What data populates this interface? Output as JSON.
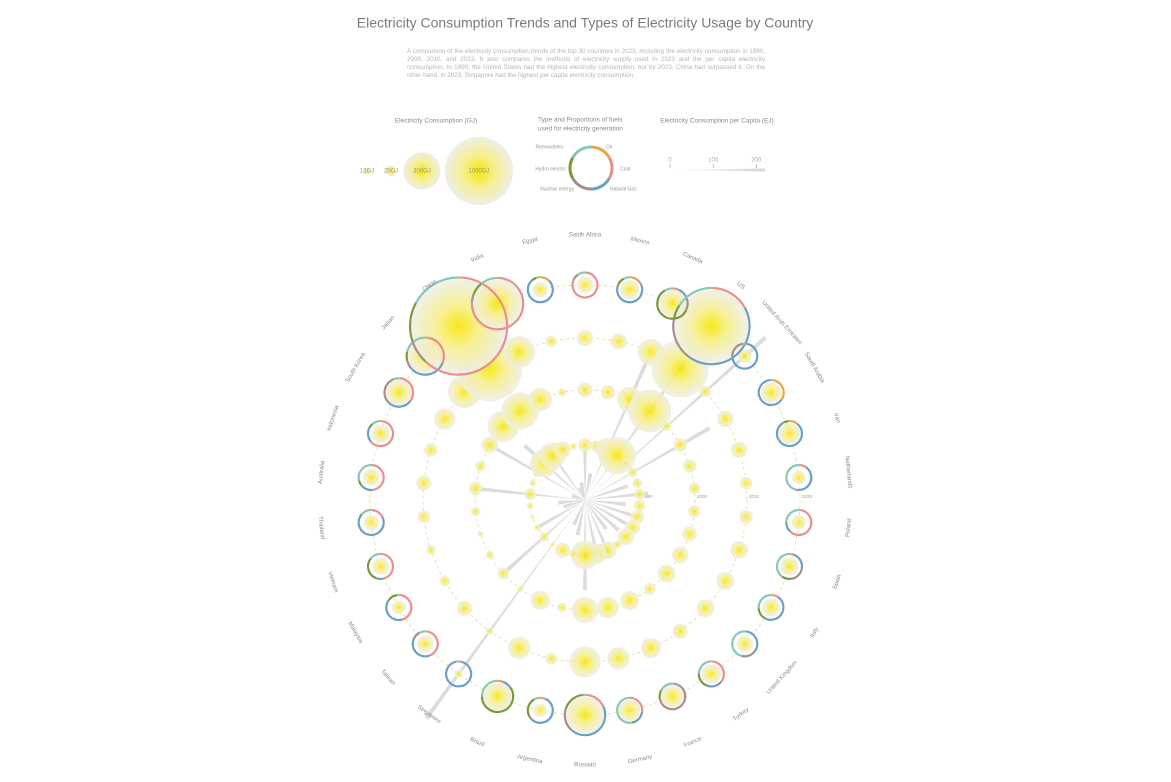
{
  "chart_data": {
    "type": "radial",
    "title": "Electricity Consumption Trends and Types of Electricity Usage by Country",
    "subtitle": "A comparison of the electricity consumption trends of the top 30 countries in 2023, including the electricity consumption in 1990, 2000, 2010, and 2023. It also compares the methods of electricity supply used in 2023 and the per capita electricity consumption. In 1990, the United States had the highest electricity consumption, but by 2023, China had surpassed it. On the other hand, in 2023, Singapore had the highest per capita electricity consumption.",
    "countries": [
      "South Africa",
      "Mexico",
      "Canada",
      "US",
      "United Arab Emirates",
      "Saudi Arabia",
      "Iran",
      "Netherlands",
      "Poland",
      "Spain",
      "Italy",
      "United Kingdom",
      "Turkey",
      "France",
      "Germany",
      "Russian",
      "Argentina",
      "Brazil",
      "Singapore",
      "Taiwan",
      "Malaysia",
      "Vietnam",
      "Thailand",
      "Australia",
      "Indonesia",
      "South Korea",
      "Japan",
      "China",
      "India",
      "Egypt"
    ],
    "consumption": {
      "title": "Electricity Consumption (GJ)",
      "legend_values": [
        12,
        25,
        300,
        1000
      ],
      "legend_value_labels": [
        "12GJ",
        "25GJ",
        "300GJ",
        "1000GJ"
      ],
      "series": [
        {
          "name": "1990",
          "values": [
            40,
            30,
            120,
            300,
            10,
            20,
            20,
            25,
            30,
            40,
            50,
            60,
            15,
            70,
            90,
            180,
            15,
            50,
            5,
            20,
            8,
            3,
            10,
            30,
            10,
            20,
            170,
            150,
            60,
            10
          ]
        },
        {
          "name": "2000",
          "values": [
            50,
            45,
            140,
            400,
            20,
            40,
            40,
            30,
            35,
            50,
            60,
            70,
            30,
            80,
            100,
            150,
            20,
            80,
            8,
            30,
            15,
            6,
            20,
            40,
            25,
            60,
            210,
            300,
            120,
            15
          ]
        },
        {
          "name": "2010",
          "values": [
            60,
            60,
            150,
            700,
            30,
            60,
            60,
            35,
            40,
            70,
            70,
            70,
            50,
            90,
            110,
            210,
            30,
            110,
            12,
            50,
            25,
            20,
            35,
            50,
            40,
            100,
            240,
            900,
            220,
            30
          ]
        },
        {
          "name": "2023",
          "values": [
            60,
            80,
            160,
            1150,
            40,
            90,
            100,
            40,
            45,
            70,
            70,
            60,
            80,
            110,
            100,
            300,
            40,
            170,
            15,
            60,
            40,
            60,
            50,
            60,
            70,
            140,
            250,
            1900,
            500,
            50
          ]
        }
      ]
    },
    "fuel_mix": {
      "title_lines": [
        "Type and Proportions of fuels",
        "used for electricity generation"
      ],
      "series": [
        {
          "name": "Oil",
          "color": "#e8a648",
          "values": [
            2,
            10,
            1,
            1,
            2,
            35,
            10,
            2,
            2,
            3,
            4,
            1,
            1,
            1,
            1,
            1,
            5,
            3,
            2,
            2,
            1,
            1,
            1,
            2,
            3,
            1,
            3,
            1,
            1,
            12
          ]
        },
        {
          "name": "Coal",
          "color": "#ea8f8c",
          "values": [
            80,
            8,
            5,
            16,
            0,
            0,
            1,
            8,
            60,
            2,
            5,
            1,
            35,
            1,
            26,
            17,
            2,
            3,
            1,
            42,
            45,
            45,
            17,
            46,
            61,
            34,
            28,
            61,
            75,
            0
          ]
        },
        {
          "name": "Natural Gas",
          "color": "#6a9fc6",
          "values": [
            2,
            60,
            12,
            43,
            75,
            64,
            80,
            40,
            12,
            25,
            50,
            35,
            20,
            5,
            15,
            43,
            55,
            7,
            94,
            40,
            40,
            10,
            65,
            17,
            18,
            28,
            32,
            3,
            2,
            76
          ]
        },
        {
          "name": "Nuclear energy",
          "color": "#a88c88",
          "values": [
            5,
            4,
            14,
            18,
            20,
            0,
            2,
            3,
            0,
            20,
            0,
            14,
            0,
            65,
            1,
            19,
            5,
            2,
            0,
            6,
            0,
            0,
            0,
            0,
            0,
            30,
            8,
            5,
            3,
            0
          ]
        },
        {
          "name": "Hydro electric",
          "color": "#7a9a38",
          "values": [
            1,
            10,
            60,
            6,
            0,
            0,
            6,
            0,
            1,
            10,
            15,
            2,
            20,
            11,
            4,
            18,
            25,
            60,
            0,
            2,
            12,
            30,
            3,
            6,
            7,
            1,
            8,
            13,
            8,
            7
          ]
        },
        {
          "name": "Renewables",
          "color": "#86c8b4",
          "values": [
            10,
            8,
            8,
            16,
            3,
            1,
            1,
            47,
            25,
            40,
            26,
            47,
            24,
            17,
            53,
            2,
            8,
            25,
            3,
            8,
            2,
            14,
            14,
            29,
            11,
            6,
            21,
            17,
            11,
            5
          ]
        }
      ]
    },
    "per_capita": {
      "title": "Electricity Consumption per Capita (EJ)",
      "values": [
        60,
        30,
        170,
        190,
        270,
        160,
        50,
        70,
        45,
        60,
        55,
        50,
        40,
        70,
        65,
        100,
        40,
        30,
        300,
        120,
        60,
        25,
        30,
        120,
        15,
        130,
        90,
        75,
        15,
        20
      ],
      "xlim": [
        0,
        220
      ],
      "xticks": [
        0,
        100,
        200
      ]
    }
  }
}
